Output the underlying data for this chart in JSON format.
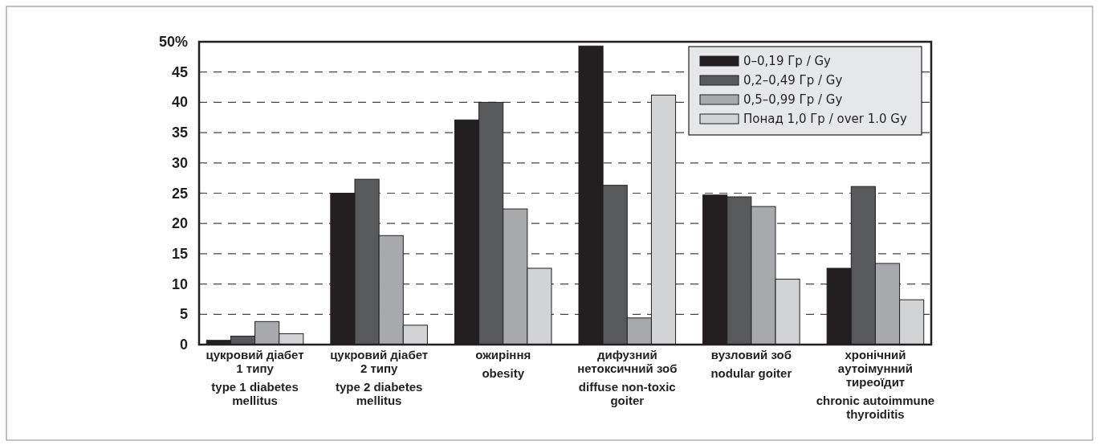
{
  "chart_data": {
    "type": "bar",
    "categories": [
      "цукровий діабет\n1 типу\n\ntype 1 diabetes\nmellitus",
      "цукровий діабет\n2 типу\n\ntype 2 diabetes\nmellitus",
      "ожиріння\n\nobesity",
      "дифузний\nнетоксичний зоб\n\ndiffuse non-toxic\ngoiter",
      "вузловий зоб\n\nnodular goiter",
      "хронічний\nаутоімунний\nтиреоїдит\n\nchronic autoimmune\nthyroiditis"
    ],
    "series": [
      {
        "name": "0–0,19 Гр / Gy",
        "color": "#231f20",
        "values": [
          0.7,
          25.0,
          37.1,
          49.3,
          24.7,
          12.6
        ]
      },
      {
        "name": "0,2–0,49 Гр / Gy",
        "color": "#58595b",
        "values": [
          1.4,
          27.3,
          40.0,
          26.3,
          24.4,
          26.1
        ]
      },
      {
        "name": "0,5–0,99 Гр / Gy",
        "color": "#a7a9ac",
        "values": [
          3.8,
          18.0,
          22.4,
          4.4,
          22.8,
          13.4
        ]
      },
      {
        "name": "Понад 1,0 Гр / over 1.0 Gy",
        "color": "#d1d3d4",
        "values": [
          1.8,
          3.2,
          12.6,
          41.2,
          10.8,
          7.4
        ]
      }
    ],
    "ylim": [
      0,
      50
    ],
    "yticks": [
      0,
      5,
      10,
      15,
      20,
      25,
      30,
      35,
      40,
      45,
      {
        "value": 50,
        "label": "50%"
      }
    ],
    "grid": "y",
    "legend": "top right"
  }
}
